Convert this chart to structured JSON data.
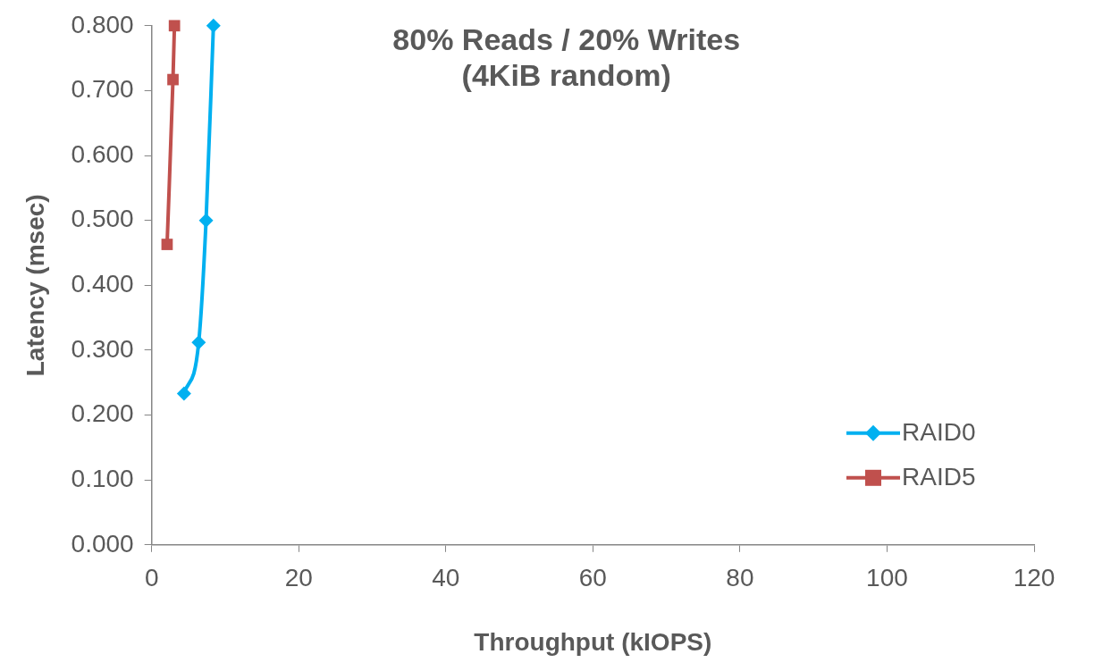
{
  "chart_data": {
    "type": "line",
    "title": "80% Reads / 20% Writes\n(4KiB random)",
    "xlabel": "Throughput (kIOPS)",
    "ylabel": "Latency (msec)",
    "series": [
      {
        "name": "RAID0",
        "color": "#00b0f0",
        "marker": "diamond",
        "x": [
          4.4,
          6.4,
          7.4,
          8.4
        ],
        "values": [
          0.233,
          0.312,
          0.5,
          0.8
        ]
      },
      {
        "name": "RAID5",
        "color": "#c0504d",
        "marker": "square",
        "x": [
          2.1,
          2.9,
          3.1
        ],
        "values": [
          0.463,
          0.717,
          0.8
        ]
      }
    ],
    "xlim": [
      0,
      120
    ],
    "xticks": [
      0,
      20,
      40,
      60,
      80,
      100,
      120
    ],
    "ylim": [
      0,
      0.8
    ],
    "yticks": [
      {
        "value": 0,
        "label": "0.000"
      },
      {
        "value": 0.1,
        "label": "0.100"
      },
      {
        "value": 0.2,
        "label": "0.200"
      },
      {
        "value": 0.3,
        "label": "0.300"
      },
      {
        "value": 0.4,
        "label": "0.400"
      },
      {
        "value": 0.5,
        "label": "0.500"
      },
      {
        "value": 0.6,
        "label": "0.600"
      },
      {
        "value": 0.7,
        "label": "0.700"
      },
      {
        "value": 0.8,
        "label": "0.800"
      }
    ],
    "grid": false,
    "legend": "bottom right"
  }
}
